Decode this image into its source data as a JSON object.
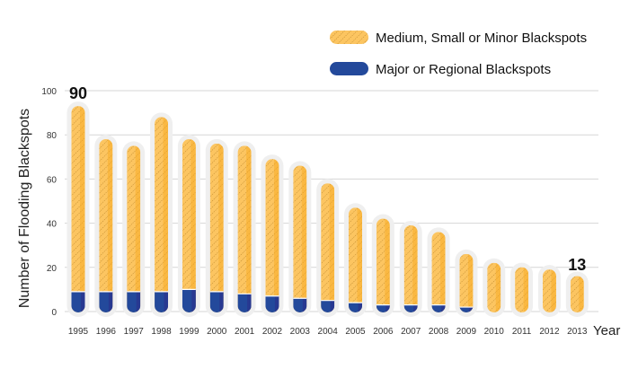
{
  "chart_data": {
    "type": "bar",
    "stacked": true,
    "xlabel": "Year",
    "ylabel": "Number of Flooding Blackspots",
    "ylim": [
      0,
      100
    ],
    "yticks": [
      0,
      20,
      40,
      60,
      80,
      100
    ],
    "grid": true,
    "legend_position": "top-right",
    "categories": [
      "1995",
      "1996",
      "1997",
      "1998",
      "1999",
      "2000",
      "2001",
      "2002",
      "2003",
      "2004",
      "2005",
      "2006",
      "2007",
      "2008",
      "2009",
      "2010",
      "2011",
      "2012",
      "2013"
    ],
    "series": [
      {
        "name": "Major or Regional Blackspots",
        "color": "#23499b",
        "values": [
          9,
          9,
          9,
          9,
          10,
          9,
          8,
          7,
          6,
          5,
          4,
          3,
          3,
          3,
          2,
          0,
          0,
          0,
          0
        ]
      },
      {
        "name": "Medium, Small or Minor Blackspots",
        "color": "#fbb53a",
        "values": [
          81,
          66,
          63,
          76,
          65,
          64,
          64,
          59,
          57,
          50,
          40,
          36,
          33,
          30,
          21,
          19,
          17,
          16,
          13
        ]
      }
    ],
    "annotations": [
      {
        "category": "1995",
        "text": "90"
      },
      {
        "category": "2013",
        "text": "13"
      }
    ]
  }
}
